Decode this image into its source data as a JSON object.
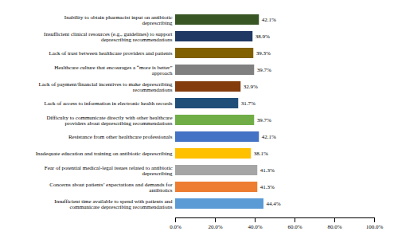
{
  "chart_data": {
    "type": "bar",
    "orientation": "horizontal",
    "categories": [
      "Inability to obtain pharmacist input on antibiotic\ndeprescribing",
      "Insufficient clinical resources (e.g., guidelines) to support\ndeprescribing recommendations",
      "Lack of trust between healthcare providers and patients",
      "Healthcare culture that encourages a “more is better”\napproach",
      "Lack of payment/financial incentives to make deprescribing\nrecommendations",
      "Lack of access to information in electronic health records",
      "Difficulty to communicate directly with other healthcare\nproviders about deprescribing recommendations",
      "Resistance from other healthcare professionals",
      "Inadequate education and training on antibiotic deprescribing",
      "Fear of potential medical-legal issues related to antibiotic\ndeprescribing",
      "Concerns about patients’ expectations and demands for\nantibiotics",
      "Insufficient time available to spend with patients and\ncommunicate deprescribing recommendations"
    ],
    "values": [
      42.1,
      38.9,
      39.3,
      39.7,
      32.9,
      31.7,
      39.7,
      42.1,
      38.1,
      41.3,
      41.3,
      44.4
    ],
    "value_labels": [
      "42.1%",
      "38.9%",
      "39.3%",
      "39.7%",
      "32.9%",
      "31.7%",
      "39.7%",
      "42.1%",
      "38.1%",
      "41.3%",
      "41.3%",
      "44.4%"
    ],
    "colors": [
      "#375623",
      "#1F3864",
      "#806000",
      "#808080",
      "#843C0C",
      "#1F4E79",
      "#70AD47",
      "#4472C4",
      "#FFC000",
      "#A5A5A5",
      "#ED7D31",
      "#5B9BD5"
    ],
    "data_labels": true,
    "xlim": [
      0,
      100
    ],
    "xticks": [
      {
        "value": 0,
        "label": "0.0%"
      },
      {
        "value": 20,
        "label": "20.0%"
      },
      {
        "value": 40,
        "label": "40.0%"
      },
      {
        "value": 60,
        "label": "60.0%"
      },
      {
        "value": 80,
        "label": "80.0%"
      },
      {
        "value": 100,
        "label": "100.0%"
      }
    ],
    "grid": false
  }
}
